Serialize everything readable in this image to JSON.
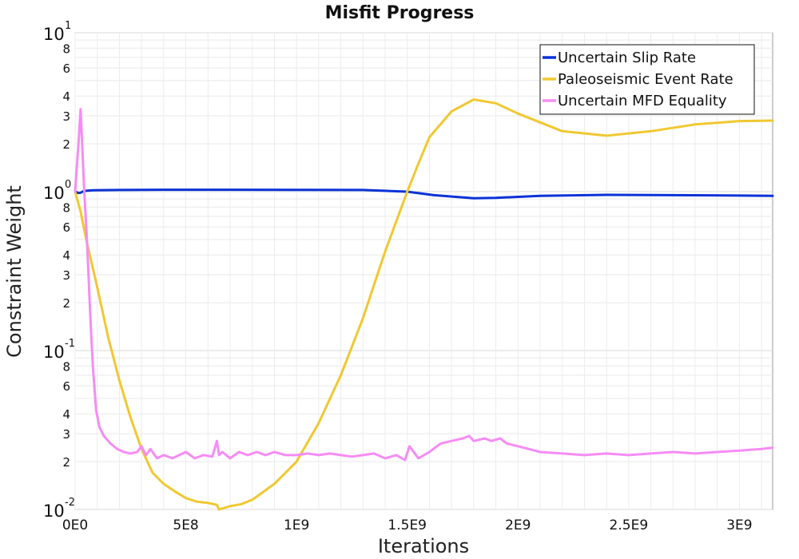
{
  "chart_data": {
    "type": "line",
    "title": "Misfit Progress",
    "xlabel": "Iterations",
    "ylabel": "Constraint Weight",
    "xlim": [
      0,
      3150000000
    ],
    "ylim": [
      0.01,
      10
    ],
    "yscale": "log",
    "grid": true,
    "legend_position": "top-right",
    "x_ticks": [
      {
        "value": 0,
        "label": "0E0"
      },
      {
        "value": 500000000,
        "label": "5E8"
      },
      {
        "value": 1000000000,
        "label": "1E9"
      },
      {
        "value": 1500000000,
        "label": "1.5E9"
      },
      {
        "value": 2000000000,
        "label": "2E9"
      },
      {
        "value": 2500000000,
        "label": "2.5E9"
      },
      {
        "value": 3000000000,
        "label": "3E9"
      }
    ],
    "y_major_ticks": [
      {
        "value": 10,
        "base": "10",
        "exp": "1"
      },
      {
        "value": 1,
        "base": "10",
        "exp": "0"
      },
      {
        "value": 0.1,
        "base": "10",
        "exp": "-1"
      },
      {
        "value": 0.01,
        "base": "10",
        "exp": "-2"
      }
    ],
    "y_minor_labels": [
      "2",
      "3",
      "4",
      "6",
      "8"
    ],
    "series": [
      {
        "name": "Uncertain Slip Rate",
        "color": "#0a32d8",
        "x": [
          0,
          15000000,
          25000000,
          40000000,
          80000000,
          200000000,
          400000000,
          700000000,
          1000000000,
          1300000000,
          1500000000,
          1620000000,
          1800000000,
          1900000000,
          2100000000,
          2400000000,
          2700000000,
          3000000000,
          3150000000
        ],
        "y": [
          1.0,
          0.98,
          0.985,
          1.01,
          1.02,
          1.025,
          1.028,
          1.028,
          1.027,
          1.025,
          1.0,
          0.95,
          0.91,
          0.915,
          0.94,
          0.955,
          0.95,
          0.945,
          0.94
        ]
      },
      {
        "name": "Paleoseismic Event Rate",
        "color": "#f0c832",
        "x": [
          0,
          25000000,
          50000000,
          100000000,
          150000000,
          200000000,
          250000000,
          300000000,
          350000000,
          400000000,
          450000000,
          500000000,
          550000000,
          600000000,
          640000000,
          650000000,
          700000000,
          750000000,
          800000000,
          900000000,
          950000000,
          1000000000,
          1100000000,
          1200000000,
          1300000000,
          1400000000,
          1500000000,
          1550000000,
          1600000000,
          1700000000,
          1800000000,
          1900000000,
          2000000000,
          2200000000,
          2400000000,
          2600000000,
          2800000000,
          3000000000,
          3150000000
        ],
        "y": [
          1.0,
          0.75,
          0.5,
          0.25,
          0.12,
          0.065,
          0.038,
          0.024,
          0.017,
          0.0145,
          0.013,
          0.0118,
          0.0112,
          0.011,
          0.0107,
          0.01,
          0.0105,
          0.0108,
          0.0115,
          0.0145,
          0.017,
          0.02,
          0.035,
          0.07,
          0.16,
          0.42,
          1.0,
          1.5,
          2.2,
          3.2,
          3.8,
          3.6,
          3.1,
          2.4,
          2.25,
          2.4,
          2.65,
          2.78,
          2.8
        ]
      },
      {
        "name": "Uncertain MFD Equality",
        "color": "#f58cf5",
        "x": [
          0,
          15000000,
          25000000,
          40000000,
          55000000,
          70000000,
          80000000,
          95000000,
          110000000,
          130000000,
          160000000,
          190000000,
          220000000,
          250000000,
          280000000,
          300000000,
          320000000,
          340000000,
          370000000,
          400000000,
          440000000,
          470000000,
          500000000,
          540000000,
          580000000,
          620000000,
          640000000,
          650000000,
          665000000,
          700000000,
          740000000,
          780000000,
          820000000,
          860000000,
          900000000,
          950000000,
          1000000000,
          1050000000,
          1100000000,
          1150000000,
          1200000000,
          1250000000,
          1300000000,
          1350000000,
          1400000000,
          1450000000,
          1490000000,
          1510000000,
          1550000000,
          1600000000,
          1650000000,
          1700000000,
          1750000000,
          1780000000,
          1800000000,
          1850000000,
          1880000000,
          1920000000,
          1950000000,
          2000000000,
          2050000000,
          2100000000,
          2200000000,
          2300000000,
          2400000000,
          2500000000,
          2600000000,
          2700000000,
          2800000000,
          2900000000,
          3000000000,
          3100000000,
          3150000000
        ],
        "y": [
          1.0,
          2.0,
          3.3,
          1.1,
          0.45,
          0.15,
          0.08,
          0.042,
          0.033,
          0.029,
          0.026,
          0.024,
          0.023,
          0.0225,
          0.023,
          0.025,
          0.022,
          0.024,
          0.021,
          0.022,
          0.021,
          0.022,
          0.023,
          0.021,
          0.022,
          0.0215,
          0.027,
          0.022,
          0.023,
          0.021,
          0.023,
          0.022,
          0.023,
          0.022,
          0.023,
          0.022,
          0.022,
          0.0225,
          0.022,
          0.0225,
          0.022,
          0.0215,
          0.022,
          0.0225,
          0.021,
          0.022,
          0.0205,
          0.025,
          0.021,
          0.023,
          0.026,
          0.027,
          0.028,
          0.029,
          0.027,
          0.028,
          0.027,
          0.028,
          0.026,
          0.025,
          0.024,
          0.023,
          0.0225,
          0.022,
          0.0225,
          0.022,
          0.0225,
          0.023,
          0.0225,
          0.023,
          0.0235,
          0.024,
          0.0245
        ]
      }
    ]
  }
}
